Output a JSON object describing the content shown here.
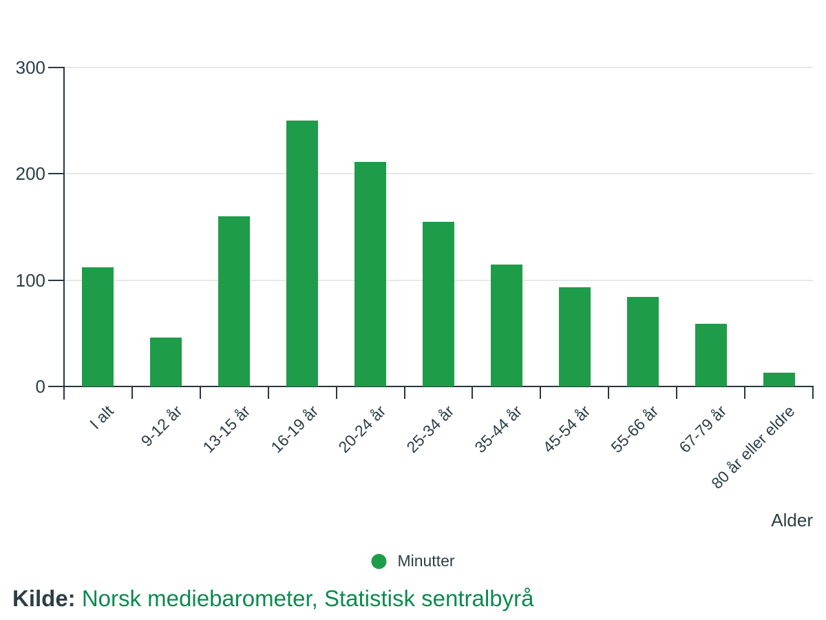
{
  "chart_data": {
    "type": "bar",
    "title": "",
    "categories": [
      "I alt",
      "9-12 år",
      "13-15 år",
      "16-19 år",
      "20-24 år",
      "25-34 år",
      "35-44 år",
      "45-54 år",
      "55-66 år",
      "67-79 år",
      "80 år eller eldre"
    ],
    "values": [
      112,
      46,
      160,
      250,
      211,
      155,
      115,
      93,
      84,
      59,
      13
    ],
    "series": [
      {
        "name": "Minutter",
        "values": [
          112,
          46,
          160,
          250,
          211,
          155,
          115,
          93,
          84,
          59,
          13
        ]
      }
    ],
    "xlabel": "Alder",
    "ylabel": "",
    "ylim": [
      0,
      300
    ],
    "yticks": [
      0,
      100,
      200,
      300
    ],
    "grid": "horizontal-light",
    "legend_position": "bottom-center",
    "bar_color": "#1f9c4a"
  },
  "legend": {
    "label": "Minutter",
    "marker": "circle-icon",
    "marker_color": "#1f9c4a"
  },
  "axes": {
    "x_title": "Alder",
    "axis_color": "#263740",
    "label_color": "#2c3e46",
    "gridline_color": "#e7e7e7"
  },
  "source": {
    "label": "Kilde:",
    "text": "Norsk mediebarometer, Statistisk sentralbyrå",
    "text_color": "#0c8a4d"
  }
}
